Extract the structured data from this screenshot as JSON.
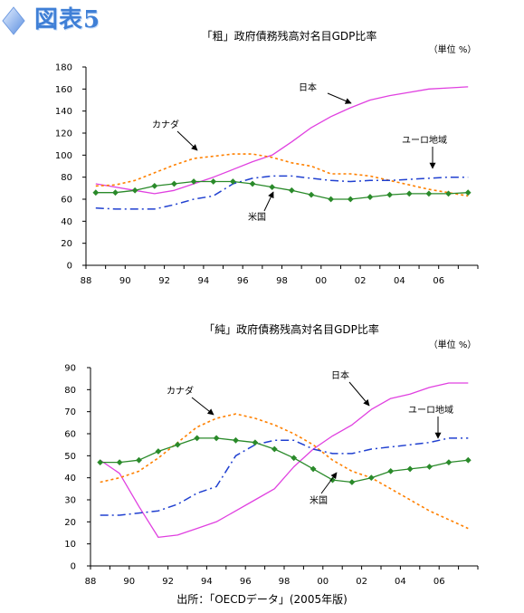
{
  "header": {
    "figure_label": "図表5"
  },
  "source_note": "出所：「OECDデータ」(2005年版)",
  "chart_data": [
    {
      "type": "line",
      "title": "「粗」政府債務残高対名目GDP比率",
      "unit_label": "（単位 %）",
      "x_tick_labels": [
        "88",
        "90",
        "92",
        "94",
        "96",
        "98",
        "00",
        "02",
        "04",
        "06"
      ],
      "x_ticks_year": [
        1988,
        1990,
        1992,
        1994,
        1996,
        1998,
        2000,
        2002,
        2004,
        2006
      ],
      "xlim": [
        1988,
        2008
      ],
      "ylim": [
        0,
        180
      ],
      "y_ticks": [
        0,
        20,
        40,
        60,
        80,
        100,
        120,
        140,
        160,
        180
      ],
      "grid": false,
      "series": [
        {
          "name": "日本",
          "color": "#e040e0",
          "style": "solid",
          "x": [
            1988.5,
            1989.5,
            1990.5,
            1991.5,
            1992.5,
            1993.5,
            1994.5,
            1995.5,
            1996.5,
            1997.5,
            1998.5,
            1999.5,
            2000.5,
            2001.5,
            2002.5,
            2003.5,
            2004.5,
            2005.5,
            2006.5,
            2007.5
          ],
          "values": [
            74,
            71,
            68,
            65,
            68,
            74,
            80,
            87,
            94,
            100,
            112,
            125,
            135,
            143,
            150,
            154,
            157,
            160,
            161,
            162
          ]
        },
        {
          "name": "カナダ",
          "color": "#ff8000",
          "style": "dotted",
          "x": [
            1988.5,
            1989.5,
            1990.5,
            1991.5,
            1992.5,
            1993.5,
            1994.5,
            1995.5,
            1996.5,
            1997.5,
            1998.5,
            1999.5,
            2000.5,
            2001.5,
            2002.5,
            2003.5,
            2004.5,
            2005.5,
            2006.5,
            2007.5
          ],
          "values": [
            72,
            73,
            77,
            84,
            91,
            97,
            99,
            101,
            101,
            98,
            93,
            90,
            83,
            83,
            81,
            77,
            73,
            69,
            66,
            63
          ]
        },
        {
          "name": "ユーロ地域",
          "color": "#2040d0",
          "style": "dashdot",
          "x": [
            1988.5,
            1989.5,
            1990.5,
            1991.5,
            1992.5,
            1993.5,
            1994.5,
            1995.5,
            1996.5,
            1997.5,
            1998.5,
            1999.5,
            2000.5,
            2001.5,
            2002.5,
            2003.5,
            2004.5,
            2005.5,
            2006.5,
            2007.5
          ],
          "values": [
            52,
            51,
            51,
            51,
            55,
            60,
            63,
            74,
            79,
            81,
            81,
            79,
            77,
            76,
            77,
            77,
            78,
            79,
            80,
            80
          ]
        },
        {
          "name": "米国",
          "color": "#2a8a2a",
          "style": "solid-marker",
          "x": [
            1988.5,
            1989.5,
            1990.5,
            1991.5,
            1992.5,
            1993.5,
            1994.5,
            1995.5,
            1996.5,
            1997.5,
            1998.5,
            1999.5,
            2000.5,
            2001.5,
            2002.5,
            2003.5,
            2004.5,
            2005.5,
            2006.5,
            2007.5
          ],
          "values": [
            66,
            66,
            68,
            72,
            74,
            76,
            76,
            76,
            74,
            71,
            68,
            64,
            60,
            60,
            62,
            64,
            65,
            65,
            65,
            66
          ]
        }
      ],
      "annotations": [
        {
          "text": "日本",
          "series": "日本"
        },
        {
          "text": "カナダ",
          "series": "カナダ"
        },
        {
          "text": "ユーロ地域",
          "series": "ユーロ地域"
        },
        {
          "text": "米国",
          "series": "米国"
        }
      ]
    },
    {
      "type": "line",
      "title": "「純」政府債務残高対名目GDP比率",
      "unit_label": "（単位 %）",
      "x_tick_labels": [
        "88",
        "90",
        "92",
        "94",
        "96",
        "98",
        "00",
        "02",
        "04",
        "06"
      ],
      "x_ticks_year": [
        1988,
        1990,
        1992,
        1994,
        1996,
        1998,
        2000,
        2002,
        2004,
        2006
      ],
      "xlim": [
        1988,
        2008
      ],
      "ylim": [
        0,
        90
      ],
      "y_ticks": [
        0,
        10,
        20,
        30,
        40,
        50,
        60,
        70,
        80,
        90
      ],
      "grid": false,
      "series": [
        {
          "name": "日本",
          "color": "#e040e0",
          "style": "solid",
          "x": [
            1988.5,
            1989.5,
            1990.5,
            1991.5,
            1992.5,
            1993.5,
            1994.5,
            1995.5,
            1996.5,
            1997.5,
            1998.5,
            1999.5,
            2000.5,
            2001.5,
            2002.5,
            2003.5,
            2004.5,
            2005.5,
            2006.5,
            2007.5
          ],
          "values": [
            48,
            42,
            27,
            13,
            14,
            17,
            20,
            25,
            30,
            35,
            45,
            53,
            59,
            64,
            71,
            76,
            78,
            81,
            83,
            83
          ]
        },
        {
          "name": "カナダ",
          "color": "#ff8000",
          "style": "dotted",
          "x": [
            1988.5,
            1989.5,
            1990.5,
            1991.5,
            1992.5,
            1993.5,
            1994.5,
            1995.5,
            1996.5,
            1997.5,
            1998.5,
            1999.5,
            2000.5,
            2001.5,
            2002.5,
            2003.5,
            2004.5,
            2005.5,
            2006.5,
            2007.5
          ],
          "values": [
            38,
            40,
            43,
            49,
            56,
            63,
            67,
            69,
            67,
            64,
            60,
            55,
            48,
            43,
            40,
            35,
            30,
            25,
            21,
            17
          ]
        },
        {
          "name": "ユーロ地域",
          "color": "#2040d0",
          "style": "dashdot",
          "x": [
            1988.5,
            1989.5,
            1990.5,
            1991.5,
            1992.5,
            1993.5,
            1994.5,
            1995.5,
            1996.5,
            1997.5,
            1998.5,
            1999.5,
            2000.5,
            2001.5,
            2002.5,
            2003.5,
            2004.5,
            2005.5,
            2006.5,
            2007.5
          ],
          "values": [
            23,
            23,
            24,
            25,
            28,
            33,
            36,
            50,
            55,
            57,
            57,
            53,
            51,
            51,
            53,
            54,
            55,
            56,
            58,
            58
          ]
        },
        {
          "name": "米国",
          "color": "#2a8a2a",
          "style": "solid-marker",
          "x": [
            1988.5,
            1989.5,
            1990.5,
            1991.5,
            1992.5,
            1993.5,
            1994.5,
            1995.5,
            1996.5,
            1997.5,
            1998.5,
            1999.5,
            2000.5,
            2001.5,
            2002.5,
            2003.5,
            2004.5,
            2005.5,
            2006.5,
            2007.5
          ],
          "values": [
            47,
            47,
            48,
            52,
            55,
            58,
            58,
            57,
            56,
            53,
            49,
            44,
            39,
            38,
            40,
            43,
            44,
            45,
            47,
            48
          ]
        }
      ],
      "annotations": [
        {
          "text": "日本",
          "series": "日本"
        },
        {
          "text": "カナダ",
          "series": "カナダ"
        },
        {
          "text": "ユーロ地域",
          "series": "ユーロ地域"
        },
        {
          "text": "米国",
          "series": "米国"
        }
      ]
    }
  ]
}
